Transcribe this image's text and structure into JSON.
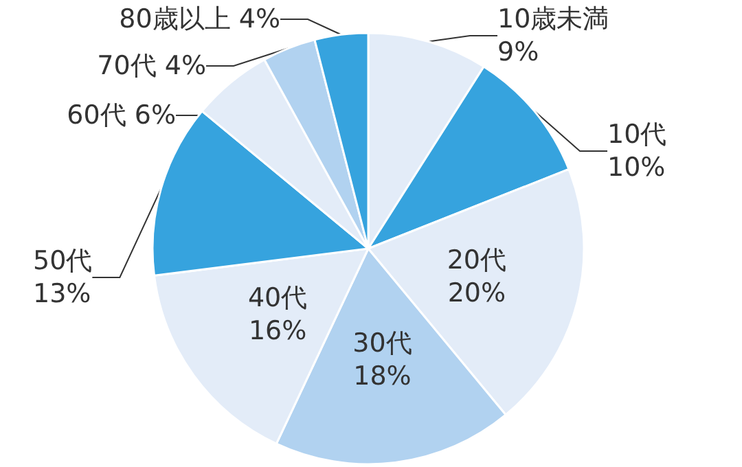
{
  "chart_data": {
    "type": "pie",
    "categories": [
      "10歳未満",
      "10代",
      "20代",
      "30代",
      "40代",
      "50代",
      "60代",
      "70代",
      "80歳以上"
    ],
    "values": [
      9,
      10,
      20,
      18,
      16,
      13,
      6,
      4,
      4
    ],
    "value_labels": [
      "9%",
      "10%",
      "20%",
      "18%",
      "16%",
      "13%",
      "6%",
      "4%",
      "4%"
    ],
    "colors": [
      "#e3ecf8",
      "#36a3de",
      "#e3ecf8",
      "#b1d2f0",
      "#e3ecf8",
      "#36a3de",
      "#e3ecf8",
      "#b1d2f0",
      "#36a3de"
    ],
    "legend": false
  }
}
